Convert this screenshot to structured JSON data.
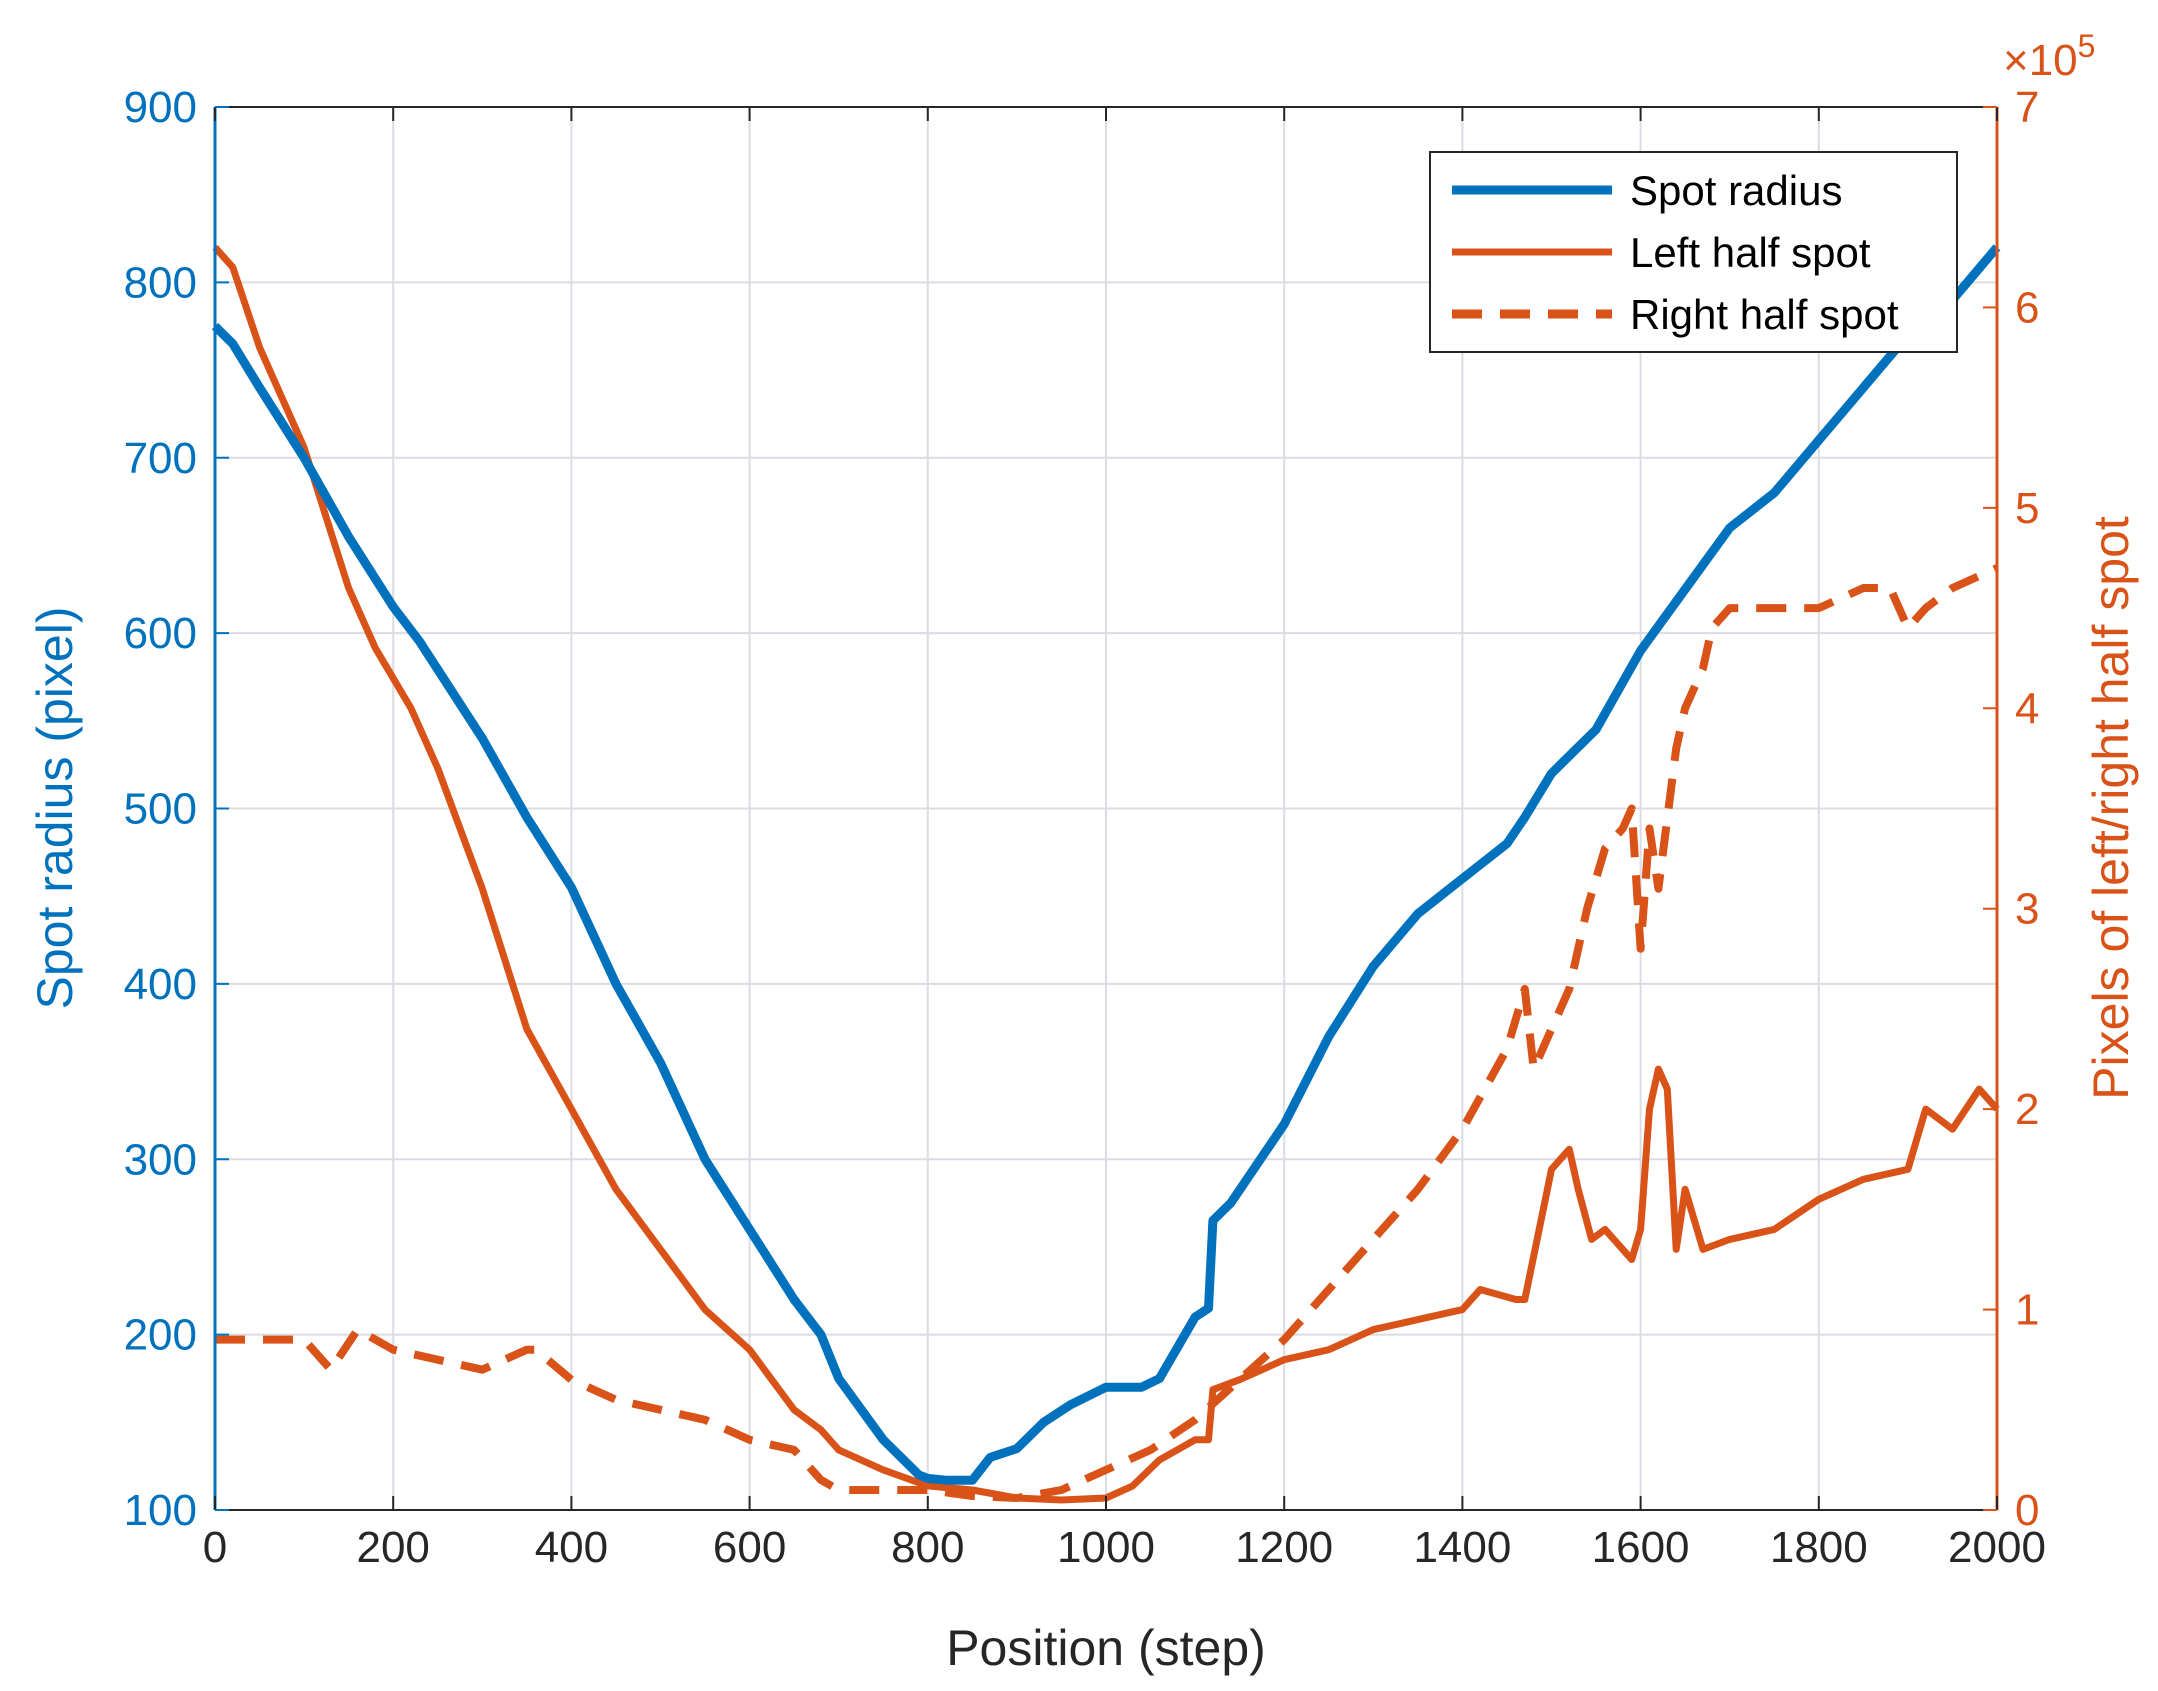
{
  "chart_data": {
    "type": "line",
    "xlabel": "Position (step)",
    "ylabel_left": "Spot radius (pixel)",
    "ylabel_right": "Pixels of left/right half spot",
    "right_exponent": {
      "base": "×10",
      "power": "5"
    },
    "xlim": [
      0,
      2000
    ],
    "ylim_left": [
      100,
      900
    ],
    "ylim_right": [
      0,
      7
    ],
    "x_ticks": [
      "0",
      "200",
      "400",
      "600",
      "800",
      "1000",
      "1200",
      "1400",
      "1600",
      "1800",
      "2000"
    ],
    "y_left_ticks": [
      "100",
      "200",
      "300",
      "400",
      "500",
      "600",
      "700",
      "800",
      "900"
    ],
    "y_right_ticks": [
      "0",
      "1",
      "2",
      "3",
      "4",
      "5",
      "6",
      "7"
    ],
    "grid": true,
    "legend_position": "top-right",
    "colors": {
      "blue": "#0072BD",
      "orange": "#D95319"
    },
    "series": [
      {
        "name": "Spot radius",
        "axis": "left",
        "style": "solid-thick",
        "x": [
          0,
          20,
          50,
          100,
          150,
          200,
          230,
          300,
          350,
          400,
          450,
          500,
          550,
          600,
          650,
          680,
          700,
          750,
          790,
          800,
          820,
          850,
          870,
          900,
          930,
          960,
          1000,
          1040,
          1060,
          1100,
          1115,
          1120,
          1140,
          1200,
          1250,
          1300,
          1350,
          1400,
          1450,
          1470,
          1500,
          1550,
          1600,
          1650,
          1700,
          1750,
          1800,
          1850,
          1900,
          1950,
          2000
        ],
        "values": [
          775,
          765,
          740,
          700,
          655,
          615,
          595,
          540,
          495,
          455,
          400,
          355,
          300,
          260,
          220,
          200,
          175,
          140,
          120,
          118,
          117,
          117,
          130,
          135,
          150,
          160,
          170,
          170,
          175,
          210,
          215,
          265,
          275,
          320,
          370,
          410,
          440,
          460,
          480,
          495,
          520,
          545,
          590,
          625,
          660,
          680,
          710,
          740,
          770,
          790,
          820
        ]
      },
      {
        "name": "Left half spot",
        "axis": "right",
        "style": "solid",
        "x": [
          0,
          20,
          50,
          100,
          150,
          180,
          220,
          250,
          300,
          350,
          400,
          450,
          500,
          550,
          600,
          650,
          680,
          700,
          750,
          800,
          850,
          900,
          950,
          1000,
          1030,
          1060,
          1100,
          1115,
          1120,
          1150,
          1200,
          1250,
          1300,
          1350,
          1400,
          1420,
          1460,
          1470,
          1500,
          1520,
          1530,
          1545,
          1560,
          1590,
          1600,
          1610,
          1620,
          1630,
          1640,
          1650,
          1670,
          1700,
          1750,
          1800,
          1850,
          1900,
          1920,
          1950,
          1980,
          2000
        ],
        "values": [
          6.3,
          6.2,
          5.8,
          5.3,
          4.6,
          4.3,
          4.0,
          3.7,
          3.1,
          2.4,
          2.0,
          1.6,
          1.3,
          1.0,
          0.8,
          0.5,
          0.4,
          0.3,
          0.2,
          0.12,
          0.1,
          0.06,
          0.05,
          0.06,
          0.12,
          0.25,
          0.35,
          0.35,
          0.6,
          0.65,
          0.75,
          0.8,
          0.9,
          0.95,
          1.0,
          1.1,
          1.05,
          1.05,
          1.7,
          1.8,
          1.6,
          1.35,
          1.4,
          1.25,
          1.4,
          2.0,
          2.2,
          2.1,
          1.3,
          1.6,
          1.3,
          1.35,
          1.4,
          1.55,
          1.65,
          1.7,
          2.0,
          1.9,
          2.1,
          2.0
        ]
      },
      {
        "name": "Right half spot",
        "axis": "right",
        "style": "dashed",
        "x": [
          0,
          50,
          100,
          130,
          160,
          200,
          250,
          300,
          350,
          360,
          400,
          450,
          500,
          550,
          600,
          650,
          680,
          700,
          750,
          800,
          850,
          900,
          950,
          1000,
          1050,
          1100,
          1150,
          1200,
          1250,
          1300,
          1350,
          1400,
          1450,
          1470,
          1480,
          1500,
          1520,
          1540,
          1560,
          1580,
          1590,
          1600,
          1610,
          1620,
          1640,
          1650,
          1670,
          1680,
          1700,
          1750,
          1800,
          1850,
          1880,
          1900,
          1920,
          1950,
          2000
        ],
        "values": [
          0.85,
          0.85,
          0.85,
          0.7,
          0.9,
          0.8,
          0.75,
          0.7,
          0.8,
          0.8,
          0.65,
          0.55,
          0.5,
          0.45,
          0.35,
          0.3,
          0.15,
          0.1,
          0.1,
          0.1,
          0.07,
          0.06,
          0.1,
          0.2,
          0.3,
          0.45,
          0.65,
          0.85,
          1.1,
          1.35,
          1.6,
          1.9,
          2.3,
          2.6,
          2.2,
          2.4,
          2.6,
          3.0,
          3.3,
          3.4,
          3.5,
          2.8,
          3.4,
          3.1,
          3.8,
          4.0,
          4.2,
          4.4,
          4.5,
          4.5,
          4.5,
          4.6,
          4.6,
          4.4,
          4.5,
          4.6,
          4.7
        ]
      }
    ]
  }
}
